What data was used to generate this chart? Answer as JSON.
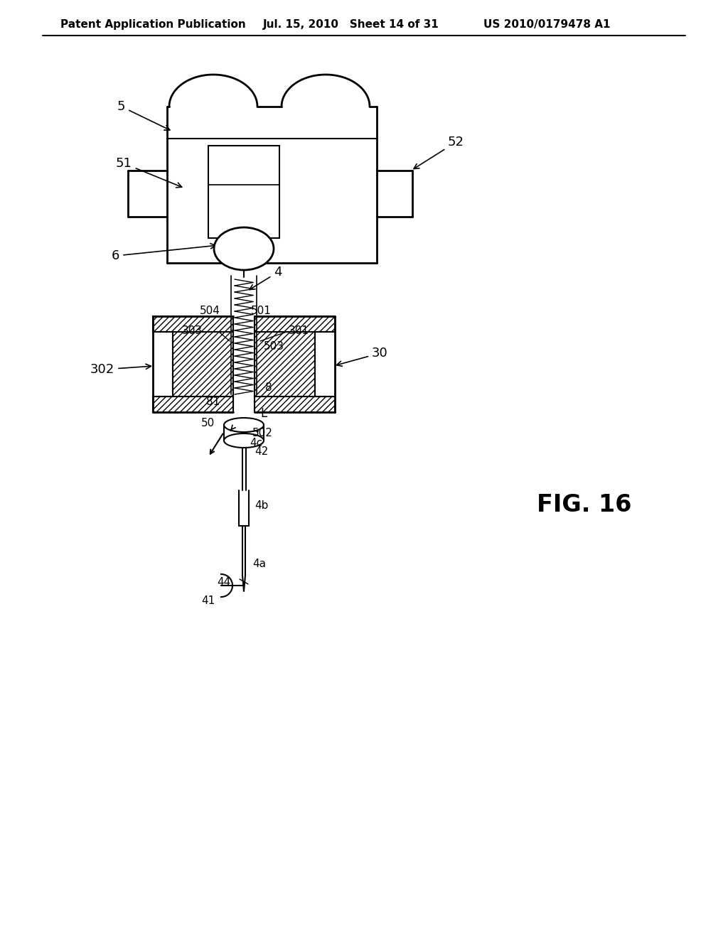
{
  "header_left": "Patent Application Publication",
  "header_mid": "Jul. 15, 2010   Sheet 14 of 31",
  "header_right": "US 2010/0179478 A1",
  "fig_label": "FIG. 16",
  "background_color": "#ffffff",
  "line_color": "#000000"
}
